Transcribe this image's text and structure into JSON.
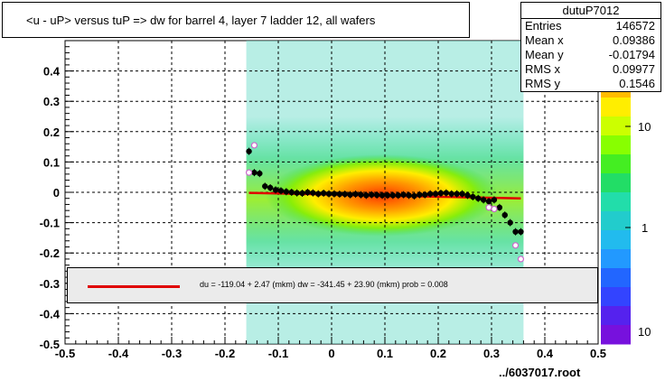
{
  "title": "<u - uP>       versus  tuP =>  dw for barrel 4, layer 7 ladder 12, all wafers",
  "stats": {
    "name": "dutuP7012",
    "rows": [
      {
        "label": "Entries",
        "value": "146572"
      },
      {
        "label": "Mean x",
        "value": "0.09386"
      },
      {
        "label": "Mean y",
        "value": "-0.01794"
      },
      {
        "label": "RMS x",
        "value": "0.09977"
      },
      {
        "label": "RMS y",
        "value": "0.1546"
      }
    ]
  },
  "fit_text": "du = -119.04 +  2.47 (mkm) dw = -341.45 + 23.90 (mkm) prob = 0.008",
  "footer": "../6037017.root",
  "colors": {
    "fit_line": "#e00000",
    "profile_points": "#000000",
    "open_points": "#cc66cc",
    "fit_box_bg": "#ebebeb"
  },
  "chart_data": {
    "type": "heatmap",
    "xlim": [
      -0.5,
      0.5
    ],
    "ylim": [
      -0.5,
      0.5
    ],
    "x_ticks": [
      "-0.5",
      "-0.4",
      "-0.3",
      "-0.2",
      "-0.1",
      "0",
      "0.1",
      "0.2",
      "0.3",
      "0.4",
      "0.5"
    ],
    "y_ticks": [
      "-0.5",
      "-0.4",
      "-0.3",
      "-0.2",
      "-0.1",
      "0",
      "0.1",
      "0.2",
      "0.3",
      "0.4"
    ],
    "colorbar_ticks": [
      "1",
      "10"
    ],
    "colorbar_top_label": "10",
    "grid": true,
    "data_extent": {
      "x": [
        -0.16,
        0.36
      ],
      "y": [
        -0.5,
        0.5
      ]
    },
    "profile": {
      "x": [
        -0.155,
        -0.145,
        -0.135,
        -0.125,
        -0.115,
        -0.105,
        -0.095,
        -0.085,
        -0.075,
        -0.065,
        -0.055,
        -0.045,
        -0.035,
        -0.025,
        -0.015,
        -0.005,
        0.005,
        0.015,
        0.025,
        0.035,
        0.045,
        0.055,
        0.065,
        0.075,
        0.085,
        0.095,
        0.105,
        0.115,
        0.125,
        0.135,
        0.145,
        0.155,
        0.165,
        0.175,
        0.185,
        0.195,
        0.205,
        0.215,
        0.225,
        0.235,
        0.245,
        0.255,
        0.265,
        0.275,
        0.285,
        0.295,
        0.305,
        0.315,
        0.325,
        0.335,
        0.345,
        0.355
      ],
      "y": [
        0.135,
        0.065,
        0.062,
        0.02,
        0.015,
        0.008,
        0.005,
        0.002,
        0.0,
        -0.002,
        -0.003,
        0.0,
        -0.002,
        -0.005,
        -0.003,
        -0.005,
        -0.005,
        -0.006,
        -0.006,
        -0.008,
        -0.006,
        -0.008,
        -0.01,
        -0.008,
        -0.009,
        -0.01,
        -0.01,
        -0.01,
        -0.01,
        -0.008,
        -0.01,
        -0.012,
        -0.008,
        -0.008,
        -0.005,
        -0.005,
        -0.003,
        -0.002,
        -0.005,
        -0.005,
        -0.005,
        -0.01,
        -0.015,
        -0.02,
        -0.025,
        -0.03,
        -0.025,
        -0.05,
        -0.075,
        -0.1,
        -0.13,
        -0.13
      ]
    },
    "open_points": {
      "x": [
        -0.155,
        -0.145,
        0.295,
        0.305,
        0.345,
        0.355
      ],
      "y": [
        0.065,
        0.155,
        -0.05,
        -0.055,
        -0.175,
        -0.22
      ]
    },
    "fit_line": {
      "x": [
        -0.155,
        0.355
      ],
      "y": [
        -0.002,
        -0.02
      ]
    }
  }
}
